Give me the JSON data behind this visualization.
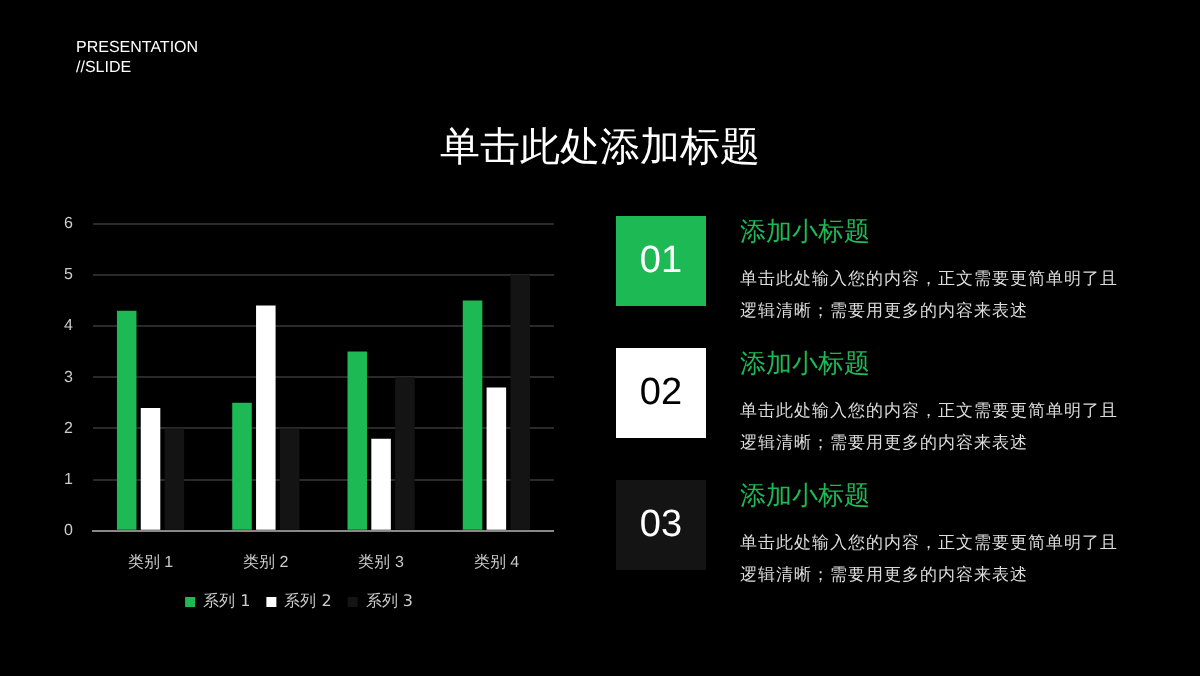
{
  "chart_data": {
    "type": "bar",
    "title": "单击此处添加标题",
    "categories": [
      "类别 1",
      "类别 2",
      "类别 3",
      "类别 4"
    ],
    "series": [
      {
        "name": "系列 1",
        "color": "#1db954",
        "values": [
          4.3,
          2.5,
          3.5,
          4.5
        ]
      },
      {
        "name": "系列 2",
        "color": "#ffffff",
        "values": [
          2.4,
          4.4,
          1.8,
          2.8
        ]
      },
      {
        "name": "系列 3",
        "color": "#141414",
        "values": [
          2,
          2,
          3,
          5
        ]
      }
    ],
    "ylim": [
      0,
      6
    ],
    "yticks": [
      0,
      1,
      2,
      3,
      4,
      5,
      6
    ],
    "grid": "y",
    "legend": "bottom",
    "annotations": [
      "PRESENTATION",
      "//SLIDE",
      "01",
      "添加小标题",
      "单击此处输入您的内容，正文需要更简单明了且逻辑清晰；需要用更多的内容来表述",
      "02",
      "添加小标题",
      "单击此处输入您的内容，正文需要更简单明了且逻辑清晰；需要用更多的内容来表述",
      "03",
      "添加小标题",
      "单击此处输入您的内容，正文需要更简单明了且逻辑清晰；需要用更多的内容来表述"
    ]
  }
}
